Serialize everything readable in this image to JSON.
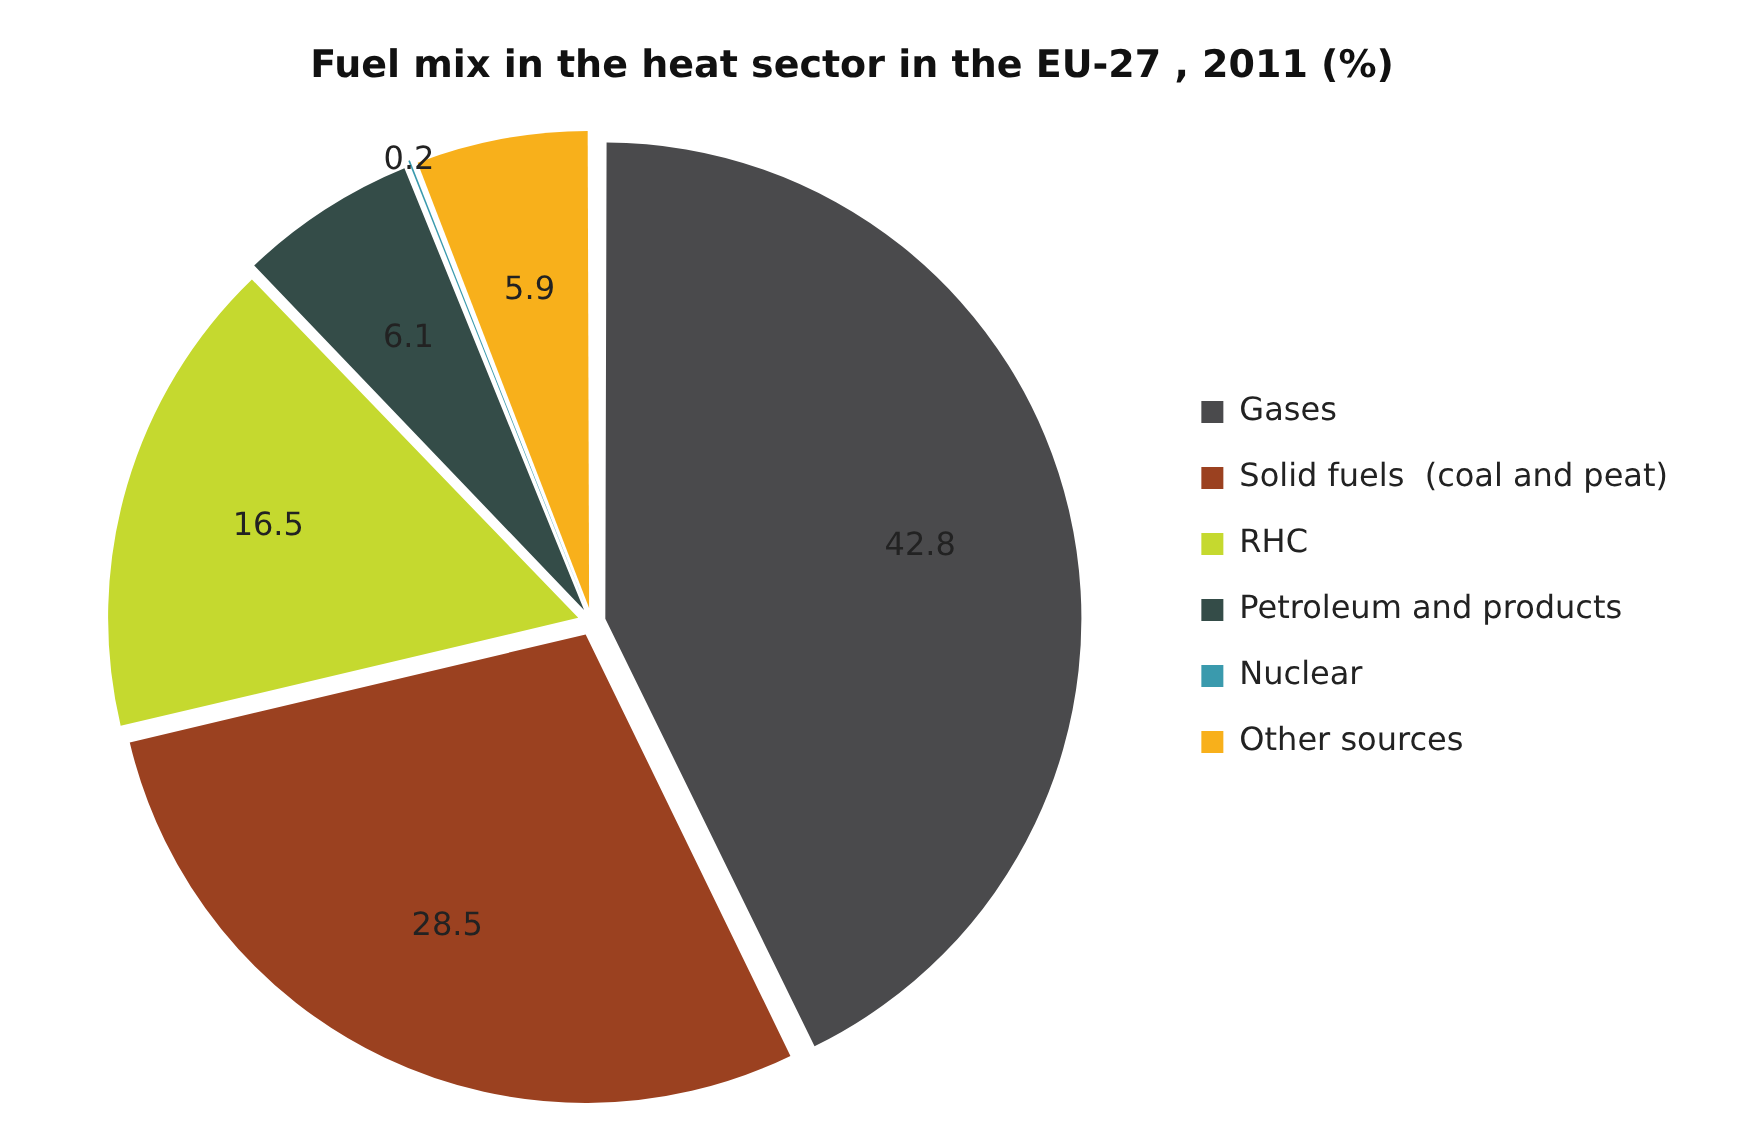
{
  "chart_data": {
    "type": "pie",
    "title": "Fuel mix in the heat sector in the EU-27 , 2011 (%)",
    "categories": [
      "Gases",
      "Solid fuels  (coal and peat)",
      "RHC",
      "Petroleum and products",
      "Nuclear",
      "Other sources"
    ],
    "values": [
      42.8,
      28.5,
      16.5,
      6.1,
      0.2,
      5.9
    ],
    "colors": [
      "#4a4a4c",
      "#9b4120",
      "#c5d92f",
      "#344c48",
      "#3a9aad",
      "#f8b01b"
    ],
    "data_labels": true,
    "legend": "right"
  }
}
